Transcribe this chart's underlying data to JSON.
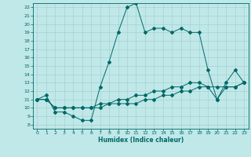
{
  "title": "",
  "xlabel": "Humidex (Indice chaleur)",
  "ylabel": "",
  "bg_color": "#c0e8e8",
  "line_color": "#006868",
  "grid_color": "#a0cccc",
  "xlim": [
    -0.5,
    23.5
  ],
  "ylim": [
    7.5,
    22.5
  ],
  "xticks": [
    0,
    1,
    2,
    3,
    4,
    5,
    6,
    7,
    8,
    9,
    10,
    11,
    12,
    13,
    14,
    15,
    16,
    17,
    18,
    19,
    20,
    21,
    22,
    23
  ],
  "yticks": [
    8,
    9,
    10,
    11,
    12,
    13,
    14,
    15,
    16,
    17,
    18,
    19,
    20,
    21,
    22
  ],
  "line1_x": [
    0,
    1,
    2,
    3,
    4,
    5,
    6,
    7,
    8,
    9,
    10,
    11,
    12,
    13,
    14,
    15,
    16,
    17,
    18,
    19,
    20,
    21,
    22,
    23
  ],
  "line1_y": [
    11.0,
    11.5,
    9.5,
    9.5,
    9.0,
    8.5,
    8.5,
    12.5,
    15.5,
    19.0,
    22.0,
    22.5,
    19.0,
    19.5,
    19.5,
    19.0,
    19.5,
    19.0,
    19.0,
    14.5,
    11.0,
    13.0,
    14.5,
    13.0
  ],
  "line2_x": [
    0,
    1,
    2,
    3,
    4,
    5,
    6,
    7,
    8,
    9,
    10,
    11,
    12,
    13,
    14,
    15,
    16,
    17,
    18,
    19,
    20,
    21,
    22,
    23
  ],
  "line2_y": [
    11.0,
    11.0,
    10.0,
    10.0,
    10.0,
    10.0,
    10.0,
    10.5,
    10.5,
    11.0,
    11.0,
    11.5,
    11.5,
    12.0,
    12.0,
    12.5,
    12.5,
    13.0,
    13.0,
    12.5,
    11.0,
    12.5,
    12.5,
    13.0
  ],
  "line3_x": [
    0,
    1,
    2,
    3,
    4,
    5,
    6,
    7,
    8,
    9,
    10,
    11,
    12,
    13,
    14,
    15,
    16,
    17,
    18,
    19,
    20,
    21,
    22,
    23
  ],
  "line3_y": [
    11.0,
    11.0,
    10.0,
    10.0,
    10.0,
    10.0,
    10.0,
    10.0,
    10.5,
    10.5,
    10.5,
    10.5,
    11.0,
    11.0,
    11.5,
    11.5,
    12.0,
    12.0,
    12.5,
    12.5,
    12.5,
    12.5,
    12.5,
    13.0
  ],
  "figsize": [
    3.2,
    2.0
  ],
  "dpi": 100
}
